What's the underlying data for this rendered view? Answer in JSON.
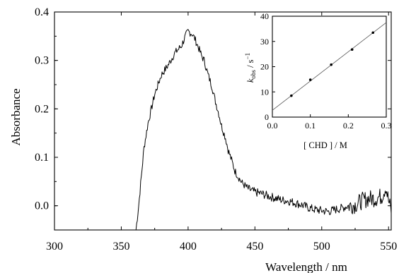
{
  "chart_data": [
    {
      "type": "line",
      "title": "",
      "xlabel": "Wavelength / nm",
      "ylabel": "Absorbance",
      "xlim": [
        300,
        552
      ],
      "ylim": [
        -0.05,
        0.4
      ],
      "xticks": [
        "300",
        "350",
        "400",
        "450",
        "500",
        "550"
      ],
      "yticks": [
        "0.0",
        "0.1",
        "0.2",
        "0.3",
        "0.4"
      ],
      "series": [
        {
          "x": [
            361,
            363,
            365,
            367,
            370,
            375,
            380,
            385,
            390,
            395,
            398,
            400,
            403,
            405,
            408,
            410,
            412,
            415,
            418,
            420,
            423,
            425,
            428,
            430,
            433,
            435,
            438,
            440,
            445,
            450,
            455,
            460,
            465,
            470,
            475,
            480,
            485,
            490,
            495,
            500,
            505,
            510,
            515,
            520,
            525,
            530,
            535,
            540,
            545,
            548,
            550,
            552
          ],
          "y": [
            -0.05,
            0.0,
            0.06,
            0.12,
            0.17,
            0.23,
            0.27,
            0.29,
            0.315,
            0.33,
            0.35,
            0.36,
            0.355,
            0.345,
            0.325,
            0.31,
            0.3,
            0.27,
            0.245,
            0.22,
            0.19,
            0.165,
            0.14,
            0.115,
            0.09,
            0.072,
            0.058,
            0.048,
            0.035,
            0.028,
            0.025,
            0.02,
            0.016,
            0.012,
            0.01,
            0.006,
            0.002,
            -0.004,
            -0.008,
            -0.01,
            -0.012,
            -0.008,
            -0.005,
            0.0,
            0.002,
            0.01,
            0.015,
            0.015,
            0.02,
            0.04,
            0.01,
            -0.01
          ]
        }
      ]
    },
    {
      "type": "scatter",
      "title": "",
      "xlabel": "[ CHD ] / M",
      "ylabel_main": "k",
      "ylabel_sub": "obs",
      "ylabel_unit": " / s",
      "ylabel_sup": "−1",
      "xlim": [
        0,
        0.3
      ],
      "ylim": [
        0,
        40
      ],
      "xticks": [
        "0.0",
        "0.1",
        "0.2",
        "0.3"
      ],
      "yticks": [
        "0",
        "10",
        "20",
        "30",
        "40"
      ],
      "points": {
        "x": [
          0.05,
          0.1,
          0.155,
          0.21,
          0.265
        ],
        "y": [
          8.5,
          14.8,
          20.8,
          26.8,
          33.5
        ]
      },
      "fit_line": {
        "x": [
          0,
          0.3
        ],
        "y": [
          2.7,
          37.5
        ]
      }
    }
  ]
}
